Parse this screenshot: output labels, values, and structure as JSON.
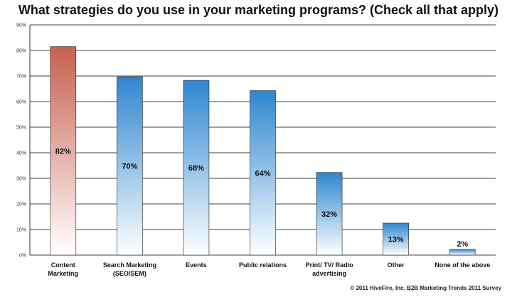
{
  "chart_data": {
    "type": "bar",
    "title": "What strategies do you use in your marketing programs? (Check all that apply)",
    "categories": [
      [
        "Content",
        "Marketing"
      ],
      [
        "Search Marketing",
        "(SEO/SEM)"
      ],
      [
        "Events"
      ],
      [
        "Public relations"
      ],
      [
        "Print/ TV/ Radio",
        "advertising"
      ],
      [
        "Other"
      ],
      [
        "None of the above"
      ]
    ],
    "values": [
      81.5,
      69.7,
      68.3,
      64.3,
      32.3,
      12.5,
      2.2
    ],
    "data_labels": [
      "82%",
      "70%",
      "68%",
      "64%",
      "32%",
      "13%",
      "2%"
    ],
    "yticks": [
      "0%",
      "10%",
      "20%",
      "30%",
      "40%",
      "50%",
      "60%",
      "70%",
      "80%",
      "90%"
    ],
    "ylim": [
      0,
      90
    ],
    "grid": true,
    "colors": {
      "highlight_top": "#c8604f",
      "highlight_bottom": "#ffffff",
      "bar_top": "#2e86d0",
      "bar_bottom": "#ffffff",
      "bar_stroke": "#222222",
      "grid": "#000000"
    }
  },
  "footer": {
    "credit": "© 2011 HiveFire, Inc. B2B Marketing Trends 2011 Survey"
  }
}
